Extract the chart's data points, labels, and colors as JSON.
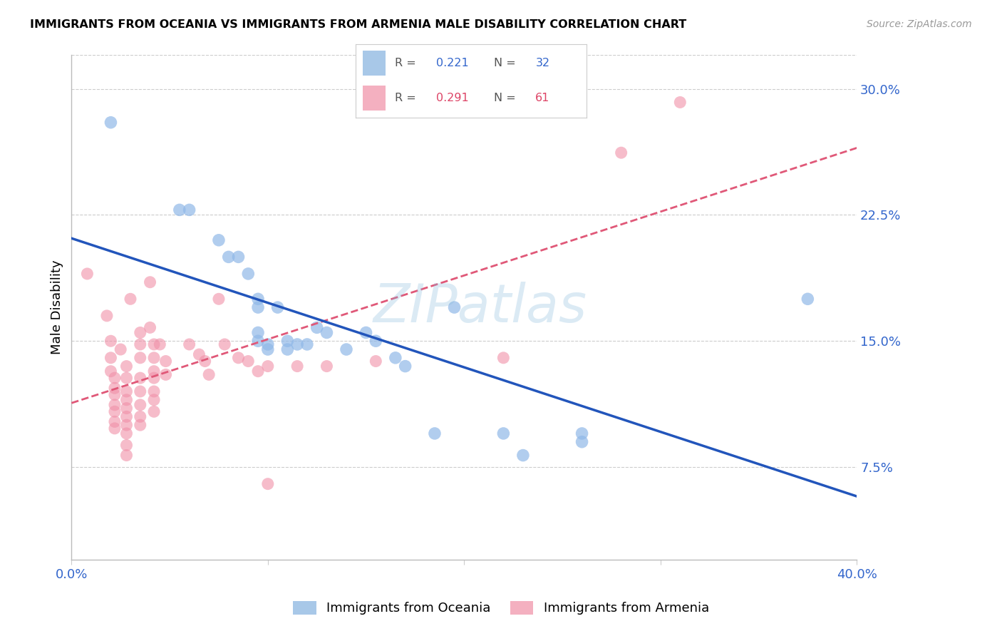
{
  "title": "IMMIGRANTS FROM OCEANIA VS IMMIGRANTS FROM ARMENIA MALE DISABILITY CORRELATION CHART",
  "source": "Source: ZipAtlas.com",
  "ylabel": "Male Disability",
  "xlim": [
    0.0,
    0.4
  ],
  "ylim": [
    0.02,
    0.32
  ],
  "x_tick_positions": [
    0.0,
    0.1,
    0.2,
    0.3,
    0.4
  ],
  "x_tick_labels": [
    "0.0%",
    "",
    "",
    "",
    "40.0%"
  ],
  "y_tick_positions": [
    0.075,
    0.15,
    0.225,
    0.3
  ],
  "y_tick_labels": [
    "7.5%",
    "15.0%",
    "22.5%",
    "30.0%"
  ],
  "oceania_color": "#90b8e8",
  "armenia_color": "#f090a8",
  "line_oceania_color": "#2255bb",
  "line_armenia_color": "#e05878",
  "line_oceania_style": "solid",
  "line_armenia_style": "dashed",
  "watermark": "ZIPatlas",
  "legend_oceania_R": "0.221",
  "legend_oceania_N": "32",
  "legend_armenia_R": "0.291",
  "legend_armenia_N": "61",
  "legend_text_color_blue": "#3366cc",
  "legend_text_color_pink": "#dd4466",
  "oceania_points": [
    [
      0.02,
      0.28
    ],
    [
      0.055,
      0.228
    ],
    [
      0.06,
      0.228
    ],
    [
      0.075,
      0.21
    ],
    [
      0.08,
      0.2
    ],
    [
      0.085,
      0.2
    ],
    [
      0.09,
      0.19
    ],
    [
      0.095,
      0.175
    ],
    [
      0.095,
      0.17
    ],
    [
      0.095,
      0.155
    ],
    [
      0.095,
      0.15
    ],
    [
      0.1,
      0.148
    ],
    [
      0.1,
      0.145
    ],
    [
      0.105,
      0.17
    ],
    [
      0.11,
      0.15
    ],
    [
      0.11,
      0.145
    ],
    [
      0.115,
      0.148
    ],
    [
      0.12,
      0.148
    ],
    [
      0.125,
      0.158
    ],
    [
      0.13,
      0.155
    ],
    [
      0.14,
      0.145
    ],
    [
      0.15,
      0.155
    ],
    [
      0.155,
      0.15
    ],
    [
      0.165,
      0.14
    ],
    [
      0.17,
      0.135
    ],
    [
      0.185,
      0.095
    ],
    [
      0.195,
      0.17
    ],
    [
      0.22,
      0.095
    ],
    [
      0.23,
      0.082
    ],
    [
      0.26,
      0.095
    ],
    [
      0.26,
      0.09
    ],
    [
      0.375,
      0.175
    ]
  ],
  "armenia_points": [
    [
      0.008,
      0.19
    ],
    [
      0.018,
      0.165
    ],
    [
      0.02,
      0.15
    ],
    [
      0.02,
      0.14
    ],
    [
      0.02,
      0.132
    ],
    [
      0.022,
      0.128
    ],
    [
      0.022,
      0.122
    ],
    [
      0.022,
      0.118
    ],
    [
      0.022,
      0.112
    ],
    [
      0.022,
      0.108
    ],
    [
      0.022,
      0.102
    ],
    [
      0.022,
      0.098
    ],
    [
      0.025,
      0.145
    ],
    [
      0.028,
      0.135
    ],
    [
      0.028,
      0.128
    ],
    [
      0.028,
      0.12
    ],
    [
      0.028,
      0.115
    ],
    [
      0.028,
      0.11
    ],
    [
      0.028,
      0.105
    ],
    [
      0.028,
      0.1
    ],
    [
      0.028,
      0.095
    ],
    [
      0.028,
      0.088
    ],
    [
      0.028,
      0.082
    ],
    [
      0.03,
      0.175
    ],
    [
      0.035,
      0.155
    ],
    [
      0.035,
      0.148
    ],
    [
      0.035,
      0.14
    ],
    [
      0.035,
      0.128
    ],
    [
      0.035,
      0.12
    ],
    [
      0.035,
      0.112
    ],
    [
      0.035,
      0.105
    ],
    [
      0.035,
      0.1
    ],
    [
      0.04,
      0.185
    ],
    [
      0.04,
      0.158
    ],
    [
      0.042,
      0.148
    ],
    [
      0.042,
      0.14
    ],
    [
      0.042,
      0.132
    ],
    [
      0.042,
      0.128
    ],
    [
      0.042,
      0.12
    ],
    [
      0.042,
      0.115
    ],
    [
      0.042,
      0.108
    ],
    [
      0.045,
      0.148
    ],
    [
      0.048,
      0.138
    ],
    [
      0.048,
      0.13
    ],
    [
      0.06,
      0.148
    ],
    [
      0.065,
      0.142
    ],
    [
      0.068,
      0.138
    ],
    [
      0.07,
      0.13
    ],
    [
      0.075,
      0.175
    ],
    [
      0.078,
      0.148
    ],
    [
      0.085,
      0.14
    ],
    [
      0.09,
      0.138
    ],
    [
      0.095,
      0.132
    ],
    [
      0.1,
      0.135
    ],
    [
      0.1,
      0.065
    ],
    [
      0.115,
      0.135
    ],
    [
      0.13,
      0.135
    ],
    [
      0.155,
      0.138
    ],
    [
      0.22,
      0.14
    ],
    [
      0.28,
      0.262
    ],
    [
      0.31,
      0.292
    ]
  ]
}
